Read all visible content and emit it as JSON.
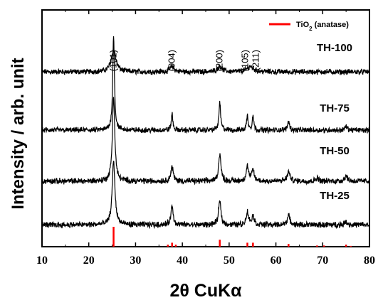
{
  "chart_data": {
    "type": "line",
    "xlabel": "2θ CuKα",
    "ylabel": "Intensity / arb. unit",
    "xlim": [
      10,
      80
    ],
    "xticks": [
      10,
      20,
      30,
      40,
      50,
      60,
      70,
      80
    ],
    "yticks_shown": false,
    "legend": {
      "label_main": "TiO",
      "label_sub": "2",
      "label_rest": " (anatase)",
      "color": "#ff0000",
      "position": "top-right"
    },
    "peak_labels": [
      {
        "text": "(101)",
        "x": 25.3
      },
      {
        "text": "(004)",
        "x": 37.8
      },
      {
        "text": "(200)",
        "x": 48.0
      },
      {
        "text": "(105)",
        "x": 53.9
      },
      {
        "text": "(211)",
        "x": 55.1
      }
    ],
    "series": [
      {
        "name": "TH-100",
        "baseline": 9.6,
        "noise": 0.12,
        "peaks": [
          {
            "x": 25.3,
            "h": 1.2,
            "w": 0.6
          },
          {
            "x": 37.8,
            "h": 0.3,
            "w": 0.5
          },
          {
            "x": 48.0,
            "h": 0.3,
            "w": 0.6
          },
          {
            "x": 54.5,
            "h": 0.3,
            "w": 0.8
          }
        ]
      },
      {
        "name": "TH-75",
        "baseline": 6.4,
        "noise": 0.12,
        "peaks": [
          {
            "x": 25.3,
            "h": 5.2,
            "w": 0.22
          },
          {
            "x": 37.8,
            "h": 0.9,
            "w": 0.2
          },
          {
            "x": 48.0,
            "h": 1.5,
            "w": 0.22
          },
          {
            "x": 53.9,
            "h": 0.8,
            "w": 0.2
          },
          {
            "x": 55.1,
            "h": 0.8,
            "w": 0.2
          },
          {
            "x": 62.7,
            "h": 0.5,
            "w": 0.25
          },
          {
            "x": 75.0,
            "h": 0.2,
            "w": 0.3
          }
        ]
      },
      {
        "name": "TH-50",
        "baseline": 3.6,
        "noise": 0.13,
        "peaks": [
          {
            "x": 25.3,
            "h": 4.7,
            "w": 0.3
          },
          {
            "x": 37.8,
            "h": 0.8,
            "w": 0.3
          },
          {
            "x": 48.0,
            "h": 1.5,
            "w": 0.3
          },
          {
            "x": 53.9,
            "h": 0.8,
            "w": 0.3
          },
          {
            "x": 55.1,
            "h": 0.6,
            "w": 0.3
          },
          {
            "x": 62.7,
            "h": 0.5,
            "w": 0.35
          },
          {
            "x": 68.8,
            "h": 0.2,
            "w": 0.3
          },
          {
            "x": 75.0,
            "h": 0.3,
            "w": 0.35
          }
        ]
      },
      {
        "name": "TH-25",
        "baseline": 1.2,
        "noise": 0.13,
        "peaks": [
          {
            "x": 25.3,
            "h": 3.5,
            "w": 0.35
          },
          {
            "x": 37.8,
            "h": 1.0,
            "w": 0.3
          },
          {
            "x": 48.0,
            "h": 1.3,
            "w": 0.3
          },
          {
            "x": 53.9,
            "h": 0.7,
            "w": 0.3
          },
          {
            "x": 55.1,
            "h": 0.5,
            "w": 0.3
          },
          {
            "x": 62.7,
            "h": 0.5,
            "w": 0.35
          },
          {
            "x": 75.0,
            "h": 0.2,
            "w": 0.3
          }
        ]
      }
    ],
    "reference_peaks": [
      {
        "x": 25.3,
        "h": 1.0
      },
      {
        "x": 36.9,
        "h": 0.1
      },
      {
        "x": 37.8,
        "h": 0.2
      },
      {
        "x": 38.6,
        "h": 0.1
      },
      {
        "x": 48.0,
        "h": 0.35
      },
      {
        "x": 53.9,
        "h": 0.2
      },
      {
        "x": 55.1,
        "h": 0.2
      },
      {
        "x": 62.7,
        "h": 0.14
      },
      {
        "x": 68.8,
        "h": 0.06
      },
      {
        "x": 70.3,
        "h": 0.06
      },
      {
        "x": 75.0,
        "h": 0.1
      },
      {
        "x": 76.0,
        "h": 0.04
      }
    ]
  }
}
